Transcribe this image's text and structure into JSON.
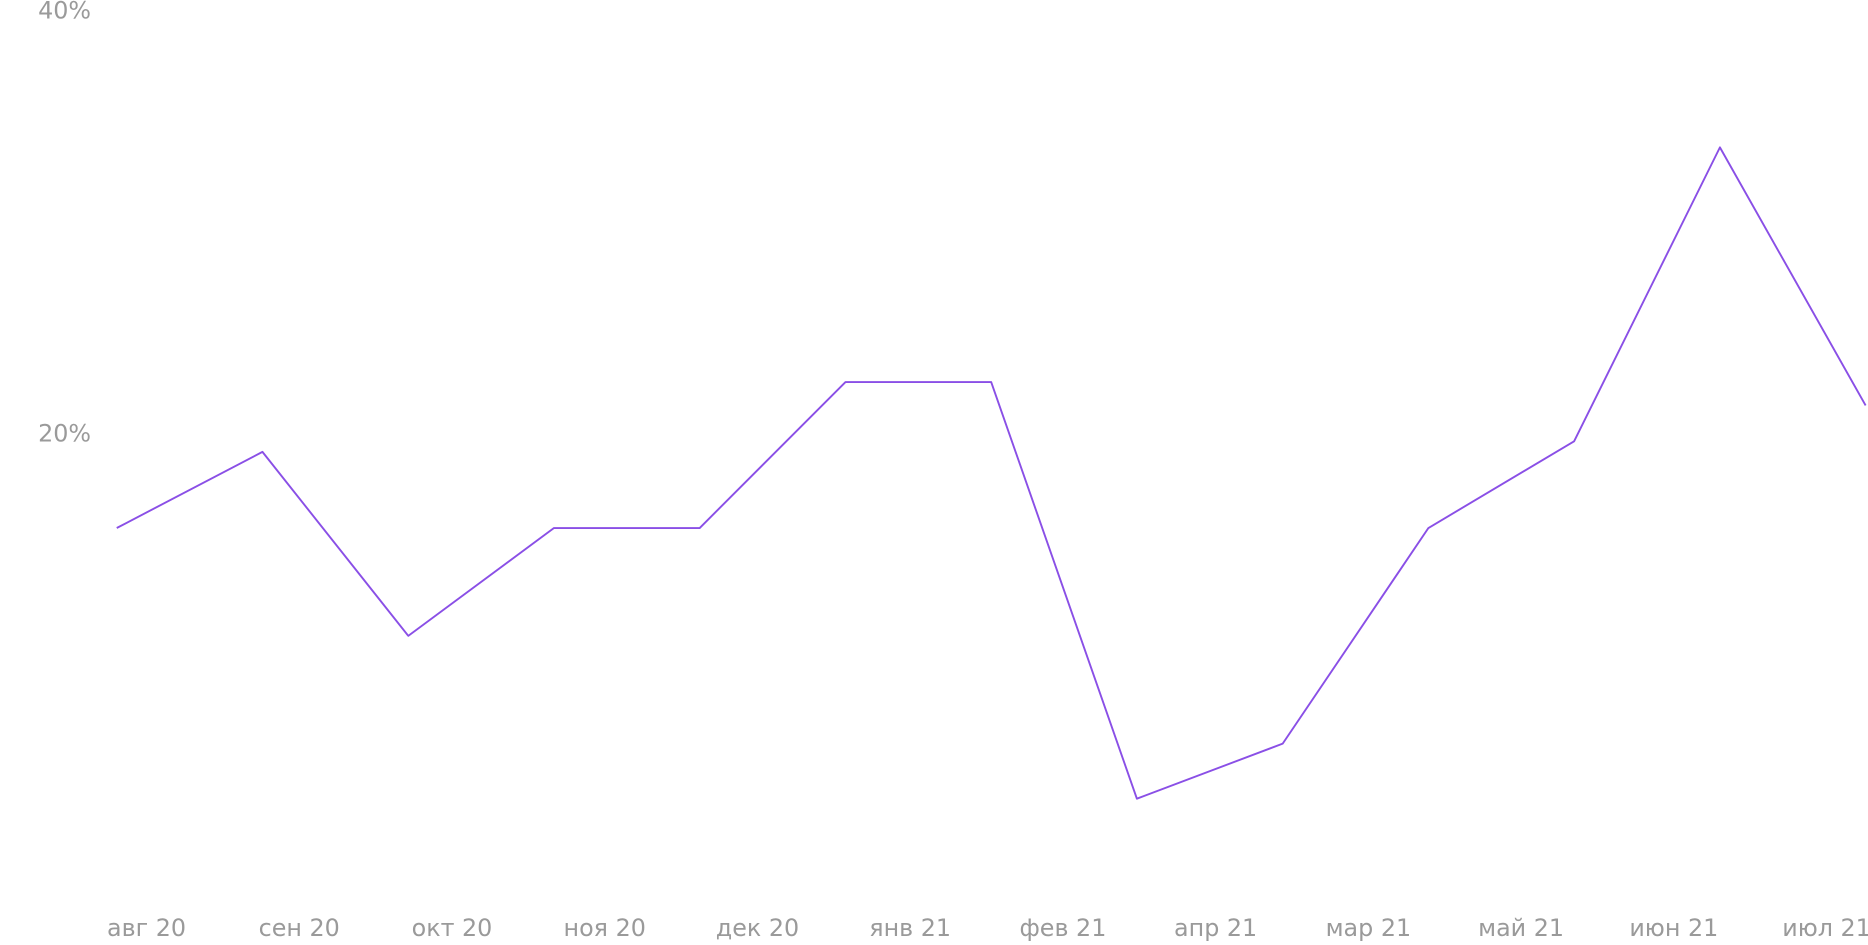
{
  "chart_data": {
    "type": "line",
    "categories": [
      "авг 20",
      "сен 20",
      "окт 20",
      "ноя 20",
      "дек 20",
      "янв 21",
      "фев 21",
      "апр 21",
      "мар 21",
      "май 21",
      "июн 21",
      "июл 21",
      null
    ],
    "series": [
      {
        "color": "#8a4fe6",
        "values": [
          15.6,
          19.2,
          10.5,
          15.6,
          15.6,
          22.5,
          22.5,
          2.8,
          5.4,
          15.6,
          19.7,
          33.6,
          21.4
        ]
      }
    ],
    "ylim": [
      0,
      40
    ],
    "yticks": [
      {
        "value": 20,
        "label": "20%"
      },
      {
        "value": 40,
        "label": "40%"
      }
    ]
  }
}
